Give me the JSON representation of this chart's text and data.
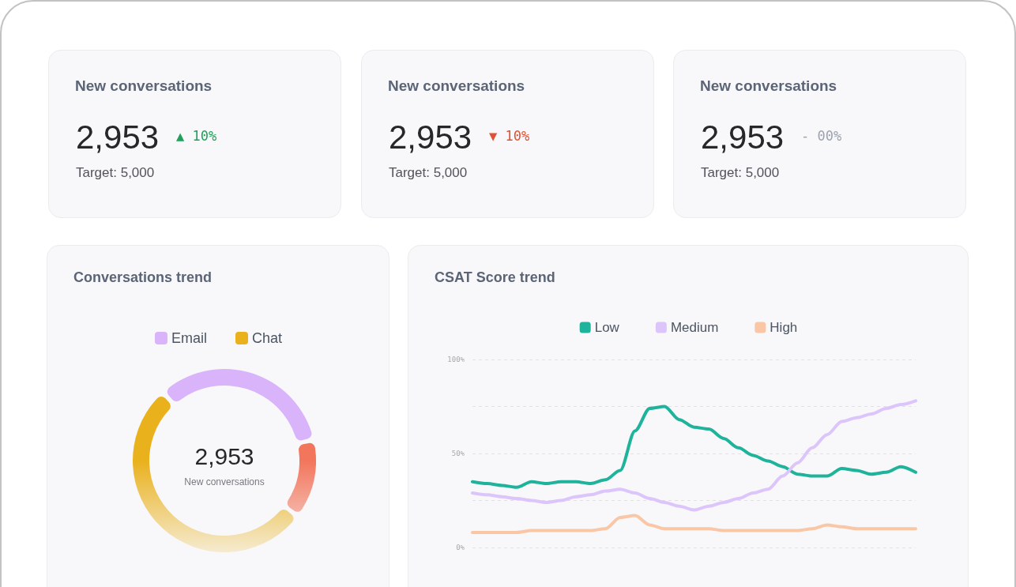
{
  "chart_data": [
    {
      "type": "other",
      "title": "New conversations",
      "annotations": [
        "2,953",
        "▲ 10%",
        "Target: 5,000"
      ],
      "colors": [
        "#27272a",
        "#22a05b",
        "#52525b"
      ]
    },
    {
      "type": "other",
      "title": "New conversations",
      "annotations": [
        "2,953",
        "▼ 10%",
        "Target: 5,000"
      ],
      "colors": [
        "#27272a",
        "#df5236",
        "#52525b"
      ]
    },
    {
      "type": "other",
      "title": "New conversations",
      "annotations": [
        "2,953",
        "- 00%",
        "Target: 5,000"
      ],
      "colors": [
        "#27272a",
        "#9ca3af",
        "#52525b"
      ]
    },
    {
      "type": "donut",
      "title": "Conversations trend",
      "categories": [
        "Email",
        null,
        "Chat"
      ],
      "values": [
        33,
        14,
        53
      ],
      "colors": [
        "#d9b4fb",
        "#f2765c",
        "#e9b11c"
      ],
      "legend": "top",
      "annotations": [
        "2,953",
        "New conversations"
      ]
    },
    {
      "type": "line",
      "title": "CSAT Score trend",
      "categories": [
        null,
        null,
        null,
        null,
        null,
        null,
        null,
        null,
        null,
        null,
        null,
        null,
        null,
        null,
        null,
        null,
        null,
        null,
        null,
        null,
        null,
        null,
        null,
        null,
        null,
        null,
        null,
        null,
        null,
        null,
        null
      ],
      "series": [
        {
          "name": "Low",
          "color": "#20b39b",
          "values": [
            35,
            34,
            33,
            32,
            35,
            34,
            35,
            35,
            34,
            36,
            41,
            62,
            74,
            75,
            68,
            64,
            63,
            58,
            53,
            49,
            46,
            43,
            39,
            38,
            38,
            42,
            41,
            39,
            40,
            43,
            40
          ]
        },
        {
          "name": "Medium",
          "color": "#dcc5fb",
          "values": [
            29,
            28,
            27,
            26,
            25,
            24,
            25,
            27,
            28,
            30,
            31,
            29,
            26,
            24,
            22,
            20,
            22,
            24,
            26,
            29,
            31,
            38,
            45,
            53,
            60,
            67,
            69,
            71,
            74,
            76,
            78
          ]
        },
        {
          "name": "High",
          "color": "#f9c6a6",
          "values": [
            8,
            8,
            8,
            8,
            9,
            9,
            9,
            9,
            9,
            10,
            16,
            17,
            12,
            10,
            10,
            10,
            10,
            9,
            9,
            9,
            9,
            9,
            9,
            10,
            12,
            11,
            10,
            10,
            10,
            10,
            10
          ]
        }
      ],
      "ylim": [
        0,
        100
      ],
      "yticks": [
        {
          "value": 0,
          "label": "0%"
        },
        {
          "value": 25,
          "label": null
        },
        {
          "value": 50,
          "label": "50%"
        },
        {
          "value": 75,
          "label": null
        },
        {
          "value": 100,
          "label": "100%"
        }
      ],
      "grid": "y",
      "legend": "top",
      "marker": "none",
      "tick_labels": "y"
    }
  ]
}
